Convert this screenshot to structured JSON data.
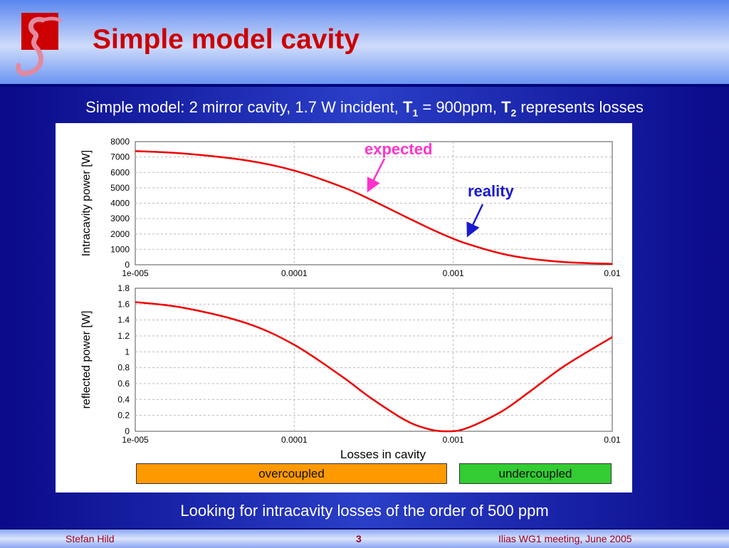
{
  "header": {
    "title": "Simple model cavity"
  },
  "subtitle": {
    "prefix": "Simple model: 2 mirror cavity, 1.7 W incident, ",
    "t1": "T",
    "t1_sub": "1",
    "mid": " = 900ppm, ",
    "t2": "T",
    "t2_sub": "2",
    "suffix": " represents losses"
  },
  "annotations": {
    "expected": "expected",
    "reality": "reality",
    "expected_color": "#ff33cc",
    "reality_color": "#1a1acc"
  },
  "coupling": {
    "overcoupled": "overcoupled",
    "undercoupled": "undercoupled",
    "overcoupled_color": "#ff9900",
    "undercoupled_color": "#33cc33"
  },
  "conclusion": "Looking for intracavity losses of the order of 500 ppm",
  "footer": {
    "author": "Stefan Hild",
    "page": "3",
    "event": "Ilias WG1 meeting, June 2005"
  },
  "chart_data": [
    {
      "type": "line",
      "title": "",
      "xlabel": "",
      "ylabel": "Intracavity power [W]",
      "xscale": "log",
      "xlim": [
        1e-05,
        0.01
      ],
      "ylim": [
        0,
        8000
      ],
      "xticks": [
        "1e-005",
        "0.0001",
        "0.001",
        "0.01"
      ],
      "xtick_values": [
        1e-05,
        0.0001,
        0.001,
        0.01
      ],
      "yticks": [
        "0",
        "1000",
        "2000",
        "3000",
        "4000",
        "5000",
        "6000",
        "7000",
        "8000"
      ],
      "grid": true,
      "line_color": "#ee0000",
      "x": [
        1e-05,
        2e-05,
        5e-05,
        0.0001,
        0.0002,
        0.0003,
        0.0005,
        0.0007,
        0.0009,
        0.0012,
        0.002,
        0.003,
        0.005,
        0.01
      ],
      "y": [
        7390,
        7231,
        6781,
        6120,
        5058,
        4250,
        3122,
        2391,
        1889,
        1388,
        728,
        402,
        176,
        52
      ]
    },
    {
      "type": "line",
      "title": "",
      "xlabel": "Losses in cavity",
      "ylabel": "reflected power [W]",
      "xscale": "log",
      "xlim": [
        1e-05,
        0.01
      ],
      "ylim": [
        0,
        1.8
      ],
      "xticks": [
        "1e-005",
        "0.0001",
        "0.001",
        "0.01"
      ],
      "xtick_values": [
        1e-05,
        0.0001,
        0.001,
        0.01
      ],
      "yticks": [
        "0",
        "0.2",
        "0.4",
        "0.6",
        "0.8",
        "1",
        "1.2",
        "1.4",
        "1.6",
        "1.8"
      ],
      "grid": true,
      "line_color": "#ee0000",
      "x": [
        1e-05,
        2e-05,
        5e-05,
        0.0001,
        0.0002,
        0.0003,
        0.0005,
        0.0007,
        0.0009,
        0.0012,
        0.002,
        0.003,
        0.005,
        0.01
      ],
      "y": [
        1.626,
        1.555,
        1.361,
        1.088,
        0.688,
        0.425,
        0.139,
        0.027,
        0,
        0.035,
        0.245,
        0.493,
        0.821,
        1.185
      ]
    }
  ]
}
